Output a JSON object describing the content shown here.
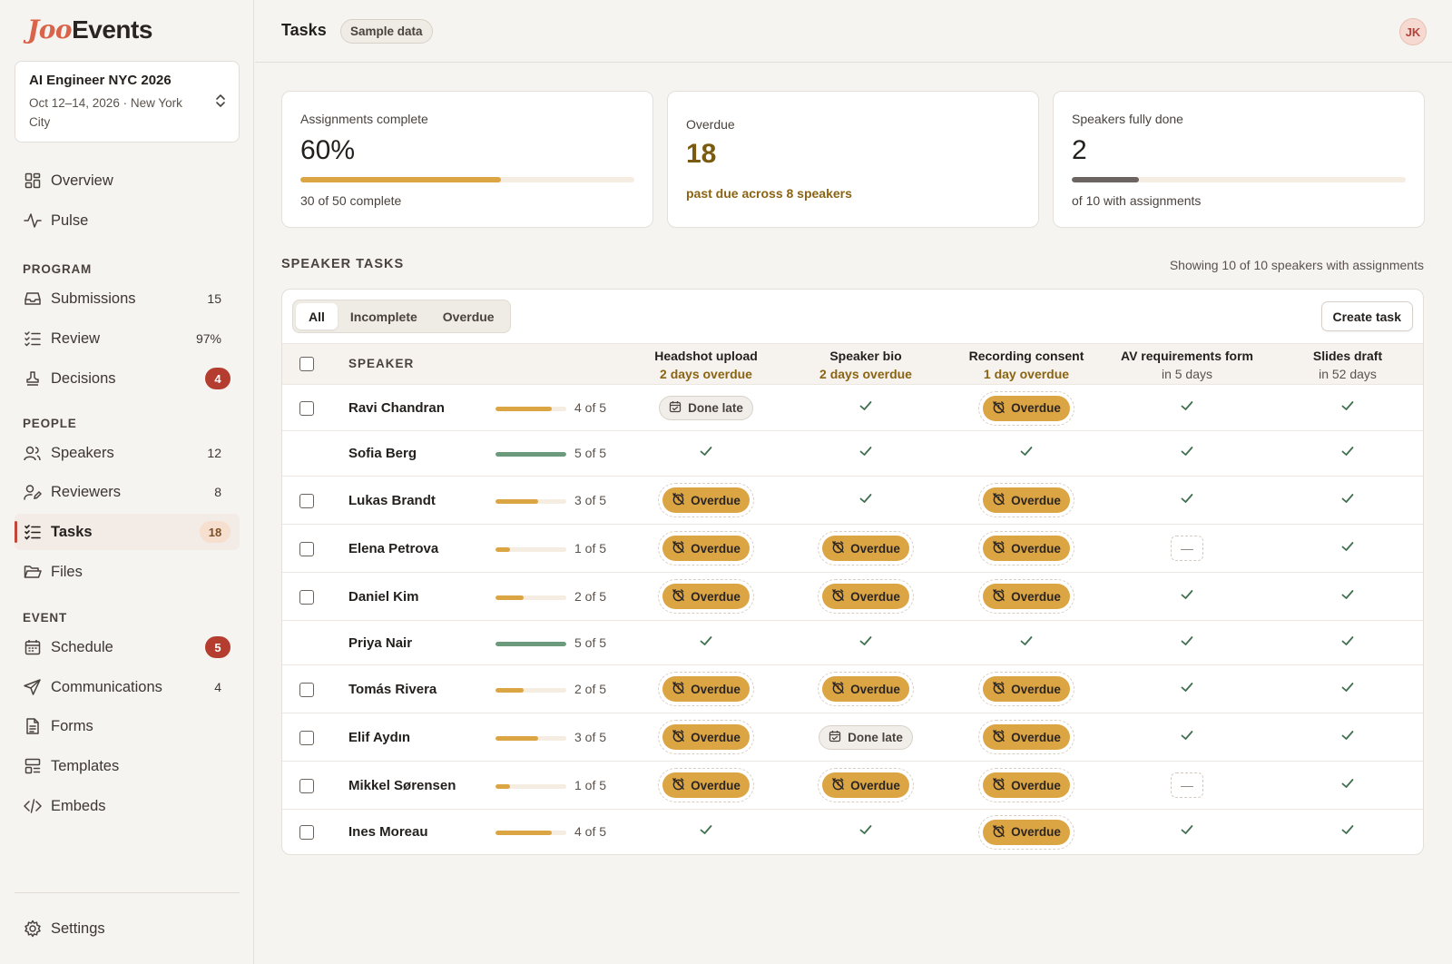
{
  "app": {
    "logo_part1": "Joo",
    "logo_part2": "Events"
  },
  "event": {
    "name": "AI Engineer NYC 2026",
    "meta": "Oct 12–14, 2026 · New York City"
  },
  "nav": {
    "overview": "Overview",
    "pulse": "Pulse",
    "program_label": "PROGRAM",
    "submissions": {
      "label": "Submissions",
      "count": "15"
    },
    "review": {
      "label": "Review",
      "count": "97%"
    },
    "decisions": {
      "label": "Decisions",
      "count": "4"
    },
    "people_label": "PEOPLE",
    "speakers": {
      "label": "Speakers",
      "count": "12"
    },
    "reviewers": {
      "label": "Reviewers",
      "count": "8"
    },
    "tasks": {
      "label": "Tasks",
      "count": "18"
    },
    "files": {
      "label": "Files"
    },
    "event_label": "EVENT",
    "schedule": {
      "label": "Schedule",
      "count": "5"
    },
    "communications": {
      "label": "Communications",
      "count": "4"
    },
    "forms": {
      "label": "Forms"
    },
    "templates": {
      "label": "Templates"
    },
    "embeds": {
      "label": "Embeds"
    },
    "settings": {
      "label": "Settings"
    }
  },
  "header": {
    "title": "Tasks",
    "badge": "Sample data",
    "avatar": "JK"
  },
  "stats": {
    "complete": {
      "label": "Assignments complete",
      "value": "60%",
      "progress": 0.6,
      "sub": "30 of 50 complete"
    },
    "overdue": {
      "label": "Overdue",
      "value": "18",
      "sub": "past due across 8 speakers"
    },
    "speakers_done": {
      "label": "Speakers fully done",
      "value": "2",
      "progress": 0.2,
      "sub": "of 10 with assignments"
    }
  },
  "section": {
    "title": "SPEAKER TASKS",
    "note": "Showing 10 of 10 speakers with assignments"
  },
  "filters": {
    "all": "All",
    "incomplete": "Incomplete",
    "overdue": "Overdue",
    "create": "Create task"
  },
  "table": {
    "speaker_header": "SPEAKER",
    "columns": [
      {
        "title": "Headshot upload",
        "sub": "2 days overdue",
        "warn": true
      },
      {
        "title": "Speaker bio",
        "sub": "2 days overdue",
        "warn": true
      },
      {
        "title": "Recording consent",
        "sub": "1 day overdue",
        "warn": true
      },
      {
        "title": "AV requirements form",
        "sub": "in 5 days",
        "warn": false
      },
      {
        "title": "Slides draft",
        "sub": "in 52 days",
        "warn": false
      }
    ],
    "rows": [
      {
        "name": "Ravi Chandran",
        "progress_text": "4 of 5",
        "done": 4,
        "checkbox": true,
        "cells": [
          "late",
          "done",
          "overdue",
          "done",
          "done"
        ]
      },
      {
        "name": "Sofia Berg",
        "progress_text": "5 of 5",
        "done": 5,
        "checkbox": false,
        "cells": [
          "done",
          "done",
          "done",
          "done",
          "done"
        ]
      },
      {
        "name": "Lukas Brandt",
        "progress_text": "3 of 5",
        "done": 3,
        "checkbox": true,
        "cells": [
          "overdue",
          "done",
          "overdue",
          "done",
          "done"
        ]
      },
      {
        "name": "Elena Petrova",
        "progress_text": "1 of 5",
        "done": 1,
        "checkbox": true,
        "cells": [
          "overdue",
          "overdue",
          "overdue",
          "na",
          "done"
        ]
      },
      {
        "name": "Daniel Kim",
        "progress_text": "2 of 5",
        "done": 2,
        "checkbox": true,
        "cells": [
          "overdue",
          "overdue",
          "overdue",
          "done",
          "done"
        ]
      },
      {
        "name": "Priya Nair",
        "progress_text": "5 of 5",
        "done": 5,
        "checkbox": false,
        "cells": [
          "done",
          "done",
          "done",
          "done",
          "done"
        ]
      },
      {
        "name": "Tomás Rivera",
        "progress_text": "2 of 5",
        "done": 2,
        "checkbox": true,
        "cells": [
          "overdue",
          "overdue",
          "overdue",
          "done",
          "done"
        ]
      },
      {
        "name": "Elif Aydın",
        "progress_text": "3 of 5",
        "done": 3,
        "checkbox": true,
        "cells": [
          "overdue",
          "late",
          "overdue",
          "done",
          "done"
        ]
      },
      {
        "name": "Mikkel Sørensen",
        "progress_text": "1 of 5",
        "done": 1,
        "checkbox": true,
        "cells": [
          "overdue",
          "overdue",
          "overdue",
          "na",
          "done"
        ]
      },
      {
        "name": "Ines Moreau",
        "progress_text": "4 of 5",
        "done": 4,
        "checkbox": true,
        "cells": [
          "done",
          "done",
          "overdue",
          "done",
          "done"
        ]
      }
    ],
    "labels": {
      "overdue": "Overdue",
      "late": "Done late",
      "na": "—"
    }
  },
  "colors": {
    "accent": "#c0473a",
    "progress_partial": "#dca544",
    "progress_full": "#6b9a7c",
    "overdue_pill": "#dca544",
    "speakers_bar": "#6b6460"
  }
}
